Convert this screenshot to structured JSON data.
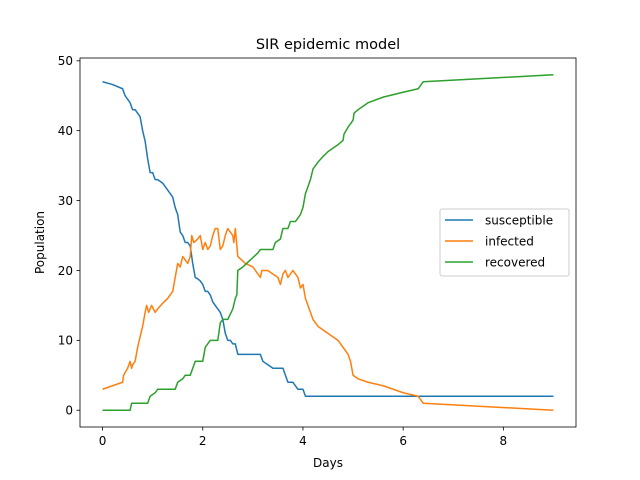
{
  "chart_data": {
    "type": "line",
    "title": "SIR epidemic model",
    "xlabel": "Days",
    "ylabel": "Population",
    "xlim": [
      -0.45,
      9.45
    ],
    "ylim": [
      -2.4,
      50.4
    ],
    "xticks": [
      0,
      2,
      4,
      6,
      8
    ],
    "yticks": [
      0,
      10,
      20,
      30,
      40,
      50
    ],
    "grid": false,
    "legend_position": "center-right",
    "series": [
      {
        "name": "susceptible",
        "color": "#1f77b4",
        "points": [
          [
            0,
            47
          ],
          [
            0.2,
            46.6
          ],
          [
            0.4,
            46
          ],
          [
            0.45,
            45
          ],
          [
            0.5,
            44.5
          ],
          [
            0.55,
            44
          ],
          [
            0.6,
            43
          ],
          [
            0.65,
            43
          ],
          [
            0.7,
            42.5
          ],
          [
            0.75,
            42
          ],
          [
            0.8,
            40
          ],
          [
            0.85,
            38.5
          ],
          [
            0.9,
            36
          ],
          [
            0.95,
            34
          ],
          [
            1.0,
            34
          ],
          [
            1.05,
            33
          ],
          [
            1.1,
            33
          ],
          [
            1.2,
            32.5
          ],
          [
            1.3,
            31.5
          ],
          [
            1.4,
            30.5
          ],
          [
            1.45,
            29
          ],
          [
            1.5,
            28
          ],
          [
            1.55,
            25.5
          ],
          [
            1.6,
            25
          ],
          [
            1.65,
            24
          ],
          [
            1.7,
            24
          ],
          [
            1.75,
            23.5
          ],
          [
            1.8,
            21
          ],
          [
            1.85,
            19
          ],
          [
            1.9,
            18.8
          ],
          [
            1.95,
            18.5
          ],
          [
            2.0,
            18
          ],
          [
            2.05,
            17
          ],
          [
            2.1,
            17
          ],
          [
            2.15,
            16.5
          ],
          [
            2.2,
            15.5
          ],
          [
            2.25,
            15
          ],
          [
            2.3,
            14.5
          ],
          [
            2.35,
            14
          ],
          [
            2.4,
            13
          ],
          [
            2.45,
            11
          ],
          [
            2.5,
            10
          ],
          [
            2.55,
            10
          ],
          [
            2.6,
            9.5
          ],
          [
            2.65,
            9.5
          ],
          [
            2.7,
            8
          ],
          [
            3.15,
            8
          ],
          [
            3.2,
            7
          ],
          [
            3.3,
            6.5
          ],
          [
            3.4,
            6
          ],
          [
            3.6,
            6
          ],
          [
            3.65,
            5
          ],
          [
            3.7,
            4
          ],
          [
            3.8,
            4
          ],
          [
            3.85,
            3.5
          ],
          [
            3.9,
            3
          ],
          [
            4.0,
            3
          ],
          [
            4.05,
            2
          ],
          [
            9.0,
            2
          ]
        ]
      },
      {
        "name": "infected",
        "color": "#ff7f0e",
        "points": [
          [
            0,
            3
          ],
          [
            0.2,
            3.5
          ],
          [
            0.4,
            4
          ],
          [
            0.42,
            5
          ],
          [
            0.5,
            6
          ],
          [
            0.55,
            7
          ],
          [
            0.58,
            6
          ],
          [
            0.6,
            6.5
          ],
          [
            0.65,
            7
          ],
          [
            0.7,
            9
          ],
          [
            0.75,
            10.5
          ],
          [
            0.8,
            12
          ],
          [
            0.85,
            14
          ],
          [
            0.88,
            15
          ],
          [
            0.92,
            14
          ],
          [
            0.95,
            14.5
          ],
          [
            0.98,
            15
          ],
          [
            1.05,
            14
          ],
          [
            1.1,
            14.5
          ],
          [
            1.2,
            15.3
          ],
          [
            1.3,
            16
          ],
          [
            1.4,
            17
          ],
          [
            1.45,
            19
          ],
          [
            1.5,
            21
          ],
          [
            1.55,
            20.5
          ],
          [
            1.6,
            22
          ],
          [
            1.65,
            21.5
          ],
          [
            1.7,
            21
          ],
          [
            1.75,
            22
          ],
          [
            1.78,
            25
          ],
          [
            1.82,
            24
          ],
          [
            1.9,
            24.5
          ],
          [
            1.95,
            25
          ],
          [
            2.0,
            23
          ],
          [
            2.05,
            24
          ],
          [
            2.1,
            23
          ],
          [
            2.15,
            23.5
          ],
          [
            2.2,
            25
          ],
          [
            2.25,
            26
          ],
          [
            2.3,
            26
          ],
          [
            2.35,
            23
          ],
          [
            2.4,
            23.5
          ],
          [
            2.45,
            25
          ],
          [
            2.5,
            26
          ],
          [
            2.55,
            25.5
          ],
          [
            2.6,
            25
          ],
          [
            2.62,
            24
          ],
          [
            2.65,
            26
          ],
          [
            2.7,
            22
          ],
          [
            2.85,
            21
          ],
          [
            3.0,
            20.5
          ],
          [
            3.1,
            19.5
          ],
          [
            3.15,
            19
          ],
          [
            3.18,
            20
          ],
          [
            3.3,
            20
          ],
          [
            3.4,
            19.5
          ],
          [
            3.5,
            19
          ],
          [
            3.55,
            18
          ],
          [
            3.6,
            19.5
          ],
          [
            3.65,
            20
          ],
          [
            3.7,
            19
          ],
          [
            3.75,
            19.5
          ],
          [
            3.8,
            20
          ],
          [
            3.85,
            19.5
          ],
          [
            3.9,
            19
          ],
          [
            3.95,
            17.5
          ],
          [
            4.0,
            18
          ],
          [
            4.05,
            16
          ],
          [
            4.1,
            15
          ],
          [
            4.2,
            13
          ],
          [
            4.3,
            12
          ],
          [
            4.4,
            11.5
          ],
          [
            4.5,
            11
          ],
          [
            4.6,
            10.5
          ],
          [
            4.7,
            10
          ],
          [
            4.8,
            9
          ],
          [
            4.85,
            8.5
          ],
          [
            4.9,
            8
          ],
          [
            4.95,
            7
          ],
          [
            5.0,
            5
          ],
          [
            5.1,
            4.5
          ],
          [
            5.3,
            4
          ],
          [
            5.6,
            3.5
          ],
          [
            6.0,
            2.5
          ],
          [
            6.3,
            2
          ],
          [
            6.4,
            1
          ],
          [
            9.0,
            0
          ]
        ]
      },
      {
        "name": "recovered",
        "color": "#2ca02c",
        "points": [
          [
            0,
            0
          ],
          [
            0.55,
            0
          ],
          [
            0.58,
            1
          ],
          [
            0.9,
            1
          ],
          [
            0.95,
            2
          ],
          [
            1.05,
            2.5
          ],
          [
            1.1,
            3
          ],
          [
            1.45,
            3
          ],
          [
            1.5,
            4
          ],
          [
            1.6,
            4.5
          ],
          [
            1.65,
            5
          ],
          [
            1.75,
            5
          ],
          [
            1.8,
            6
          ],
          [
            1.85,
            7
          ],
          [
            2.0,
            7
          ],
          [
            2.05,
            9
          ],
          [
            2.1,
            9.5
          ],
          [
            2.15,
            10
          ],
          [
            2.3,
            10
          ],
          [
            2.35,
            12.5
          ],
          [
            2.4,
            13
          ],
          [
            2.5,
            13
          ],
          [
            2.6,
            14.5
          ],
          [
            2.65,
            16
          ],
          [
            2.68,
            16.5
          ],
          [
            2.7,
            20
          ],
          [
            2.8,
            20.5
          ],
          [
            2.95,
            21.5
          ],
          [
            3.1,
            22.5
          ],
          [
            3.15,
            23
          ],
          [
            3.4,
            23
          ],
          [
            3.45,
            24
          ],
          [
            3.55,
            24.5
          ],
          [
            3.6,
            26
          ],
          [
            3.7,
            26
          ],
          [
            3.75,
            27
          ],
          [
            3.85,
            27
          ],
          [
            3.95,
            28
          ],
          [
            4.0,
            29
          ],
          [
            4.05,
            31
          ],
          [
            4.15,
            33
          ],
          [
            4.2,
            34.5
          ],
          [
            4.3,
            35.5
          ],
          [
            4.4,
            36.3
          ],
          [
            4.5,
            37
          ],
          [
            4.6,
            37.5
          ],
          [
            4.7,
            38
          ],
          [
            4.8,
            38.6
          ],
          [
            4.82,
            39.5
          ],
          [
            4.9,
            40.5
          ],
          [
            4.95,
            41
          ],
          [
            5.0,
            41.5
          ],
          [
            5.02,
            42.5
          ],
          [
            5.1,
            43
          ],
          [
            5.3,
            44
          ],
          [
            5.6,
            44.8
          ],
          [
            6.0,
            45.5
          ],
          [
            6.3,
            46
          ],
          [
            6.4,
            47
          ],
          [
            9.0,
            48
          ]
        ]
      }
    ]
  }
}
